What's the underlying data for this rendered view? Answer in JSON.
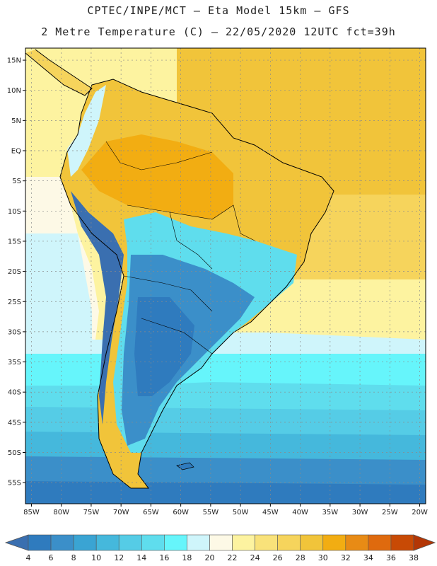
{
  "header": {
    "line1": "CPTEC/INPE/MCT –  Eta Model 15km – GFS",
    "line2": "2 Metre Temperature (C) – 22/05/2020 12UTC fct=39h"
  },
  "map": {
    "lon_range": [
      -86,
      -19
    ],
    "lat_range": [
      -58.5,
      17
    ],
    "lat_ticks": [
      "15N",
      "10N",
      "5N",
      "EQ",
      "5S",
      "10S",
      "15S",
      "20S",
      "25S",
      "30S",
      "35S",
      "40S",
      "45S",
      "50S",
      "55S"
    ],
    "lon_ticks": [
      "85W",
      "80W",
      "75W",
      "70W",
      "65W",
      "60W",
      "55W",
      "50W",
      "45W",
      "40W",
      "35W",
      "30W",
      "25W",
      "20W"
    ]
  },
  "colorbar": {
    "labels": [
      "4",
      "6",
      "8",
      "10",
      "12",
      "14",
      "16",
      "18",
      "20",
      "22",
      "24",
      "26",
      "28",
      "30",
      "32",
      "34",
      "36",
      "38"
    ],
    "colors": [
      "#3a6fb0",
      "#2f7bbe",
      "#3b8fc9",
      "#3aa4d3",
      "#45b8dc",
      "#55cce6",
      "#5fdded",
      "#66f5fb",
      "#cff5fb",
      "#fdf9e6",
      "#fdf3a0",
      "#f9e27a",
      "#f6d45c",
      "#f1c43a",
      "#f2ad12",
      "#e88b15",
      "#df6a0e",
      "#c84a05",
      "#b33605"
    ]
  }
}
